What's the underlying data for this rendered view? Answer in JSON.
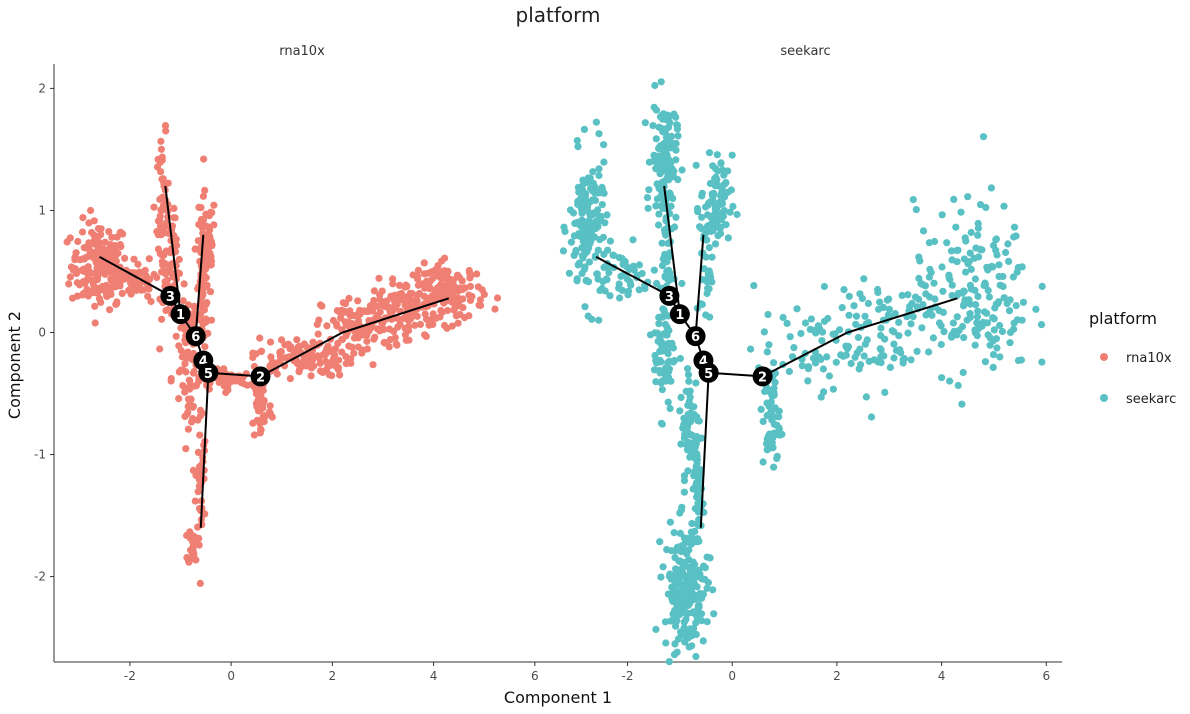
{
  "chart_data": {
    "type": "scatter",
    "title": "platform",
    "xlabel": "Component 1",
    "ylabel": "Component 2",
    "xlim": [
      -3.5,
      6.3
    ],
    "ylim": [
      -2.7,
      2.2
    ],
    "x_ticks": [
      -2,
      0,
      2,
      4,
      6
    ],
    "y_ticks": [
      -2,
      -1,
      0,
      1,
      2
    ],
    "grid": false,
    "legend": {
      "title": "platform",
      "position": "right",
      "entries": [
        "rna10x",
        "seekarc"
      ]
    },
    "colors": {
      "rna10x": "#F07F73",
      "seekarc": "#59C0C4"
    },
    "trajectory": {
      "nodes": [
        {
          "label": "1",
          "x": -1.0,
          "y": 0.15
        },
        {
          "label": "2",
          "x": 0.58,
          "y": -0.36
        },
        {
          "label": "3",
          "x": -1.2,
          "y": 0.3
        },
        {
          "label": "4",
          "x": -0.55,
          "y": -0.23
        },
        {
          "label": "5",
          "x": -0.45,
          "y": -0.33
        },
        {
          "label": "6",
          "x": -0.7,
          "y": -0.03
        }
      ],
      "segments": [
        [
          [
            -2.6,
            0.62
          ],
          [
            -1.2,
            0.3
          ]
        ],
        [
          [
            -1.2,
            0.3
          ],
          [
            -1.0,
            0.15
          ]
        ],
        [
          [
            -1.0,
            0.15
          ],
          [
            -0.7,
            -0.03
          ]
        ],
        [
          [
            -0.7,
            -0.03
          ],
          [
            -0.55,
            -0.23
          ]
        ],
        [
          [
            -0.55,
            -0.23
          ],
          [
            -0.45,
            -0.33
          ]
        ],
        [
          [
            -0.45,
            -0.33
          ],
          [
            0.58,
            -0.36
          ]
        ],
        [
          [
            0.58,
            -0.36
          ],
          [
            2.2,
            0.0
          ]
        ],
        [
          [
            2.2,
            0.0
          ],
          [
            4.3,
            0.28
          ]
        ],
        [
          [
            -0.45,
            -0.33
          ],
          [
            -0.6,
            -1.6
          ]
        ],
        [
          [
            -0.7,
            -0.03
          ],
          [
            -0.55,
            0.8
          ]
        ],
        [
          [
            -1.0,
            0.15
          ],
          [
            -1.3,
            1.2
          ]
        ]
      ]
    },
    "panels": [
      {
        "name": "rna10x",
        "clusters": [
          {
            "cx": -2.6,
            "cy": 0.55,
            "sx": 0.28,
            "sy": 0.18,
            "n": 170
          },
          {
            "cx": -1.9,
            "cy": 0.42,
            "sx": 0.35,
            "sy": 0.08,
            "n": 70
          },
          {
            "cx": -1.35,
            "cy": 0.95,
            "sx": 0.06,
            "sy": 0.32,
            "n": 60
          },
          {
            "cx": -1.15,
            "cy": 0.55,
            "sx": 0.07,
            "sy": 0.2,
            "n": 40
          },
          {
            "cx": -0.5,
            "cy": 0.7,
            "sx": 0.1,
            "sy": 0.22,
            "n": 70
          },
          {
            "cx": -0.55,
            "cy": 0.3,
            "sx": 0.06,
            "sy": 0.2,
            "n": 40
          },
          {
            "cx": -0.75,
            "cy": 0.0,
            "sx": 0.15,
            "sy": 0.15,
            "n": 60
          },
          {
            "cx": -0.85,
            "cy": -0.55,
            "sx": 0.08,
            "sy": 0.1,
            "n": 25
          },
          {
            "cx": -0.35,
            "cy": -0.38,
            "sx": 0.4,
            "sy": 0.05,
            "n": 70
          },
          {
            "cx": 0.6,
            "cy": -0.6,
            "sx": 0.1,
            "sy": 0.15,
            "n": 50
          },
          {
            "cx": -0.6,
            "cy": -1.2,
            "sx": 0.05,
            "sy": 0.3,
            "n": 40
          },
          {
            "cx": -0.75,
            "cy": -1.75,
            "sx": 0.05,
            "sy": 0.08,
            "n": 25
          },
          {
            "cx": 1.4,
            "cy": -0.2,
            "sx": 0.5,
            "sy": 0.08,
            "n": 110
          },
          {
            "cx": 2.6,
            "cy": 0.05,
            "sx": 0.4,
            "sy": 0.12,
            "n": 110
          },
          {
            "cx": 3.4,
            "cy": 0.22,
            "sx": 0.3,
            "sy": 0.1,
            "n": 90
          },
          {
            "cx": 4.3,
            "cy": 0.32,
            "sx": 0.35,
            "sy": 0.12,
            "n": 140
          }
        ]
      },
      {
        "name": "seekarc",
        "clusters": [
          {
            "cx": -2.75,
            "cy": 0.85,
            "sx": 0.18,
            "sy": 0.3,
            "n": 150
          },
          {
            "cx": -2.0,
            "cy": 0.45,
            "sx": 0.35,
            "sy": 0.12,
            "n": 50
          },
          {
            "cx": -1.3,
            "cy": 1.4,
            "sx": 0.12,
            "sy": 0.25,
            "n": 140
          },
          {
            "cx": -1.25,
            "cy": 0.75,
            "sx": 0.05,
            "sy": 0.3,
            "n": 30
          },
          {
            "cx": -0.3,
            "cy": 1.05,
            "sx": 0.15,
            "sy": 0.2,
            "n": 80
          },
          {
            "cx": -0.5,
            "cy": 0.5,
            "sx": 0.05,
            "sy": 0.2,
            "n": 30
          },
          {
            "cx": -1.3,
            "cy": -0.15,
            "sx": 0.1,
            "sy": 0.25,
            "n": 70
          },
          {
            "cx": -0.8,
            "cy": -0.8,
            "sx": 0.1,
            "sy": 0.3,
            "n": 60
          },
          {
            "cx": -0.65,
            "cy": -1.3,
            "sx": 0.06,
            "sy": 0.25,
            "n": 50
          },
          {
            "cx": -0.9,
            "cy": -2.1,
            "sx": 0.2,
            "sy": 0.25,
            "n": 200
          },
          {
            "cx": 0.75,
            "cy": -0.7,
            "sx": 0.08,
            "sy": 0.22,
            "n": 60
          },
          {
            "cx": 1.6,
            "cy": -0.15,
            "sx": 0.6,
            "sy": 0.15,
            "n": 60
          },
          {
            "cx": 2.8,
            "cy": 0.05,
            "sx": 0.7,
            "sy": 0.25,
            "n": 90
          },
          {
            "cx": 4.6,
            "cy": 0.35,
            "sx": 0.55,
            "sy": 0.35,
            "n": 180
          }
        ]
      }
    ]
  }
}
